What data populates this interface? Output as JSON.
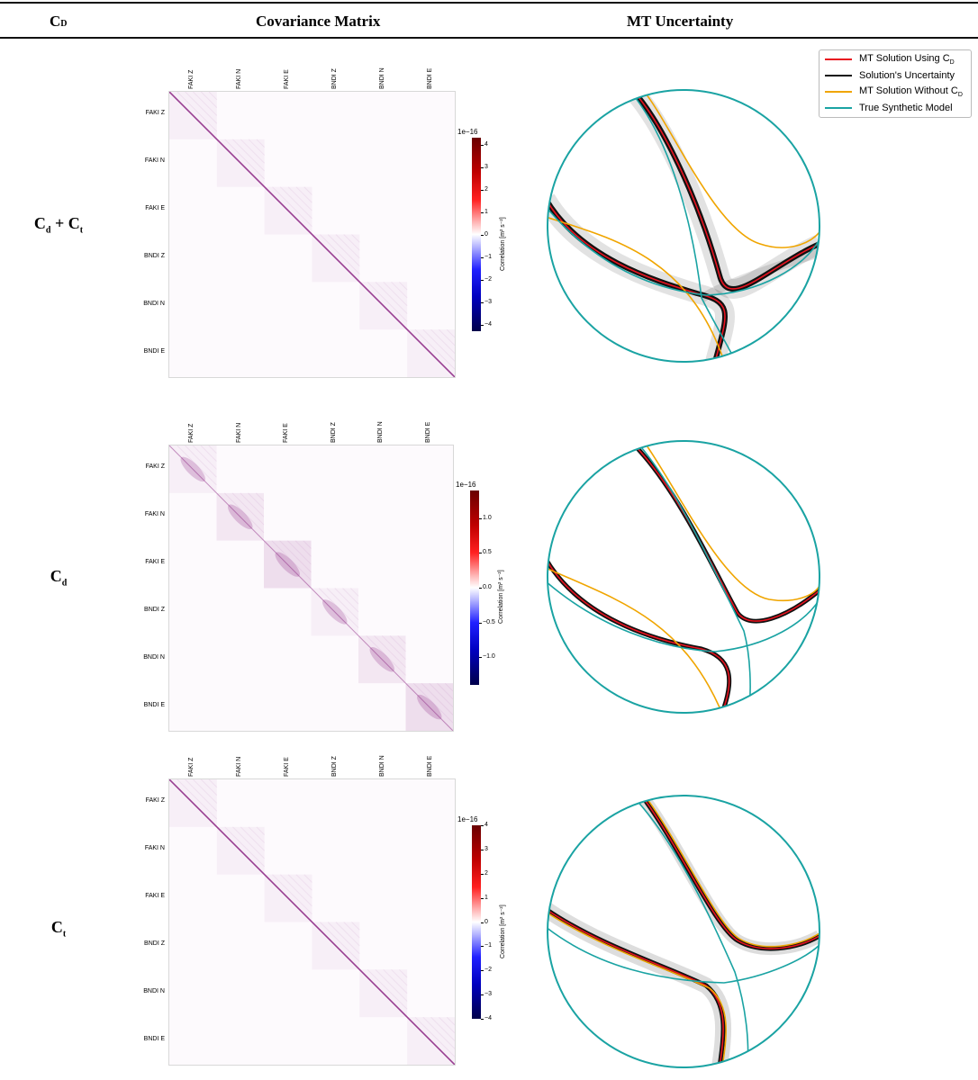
{
  "header": {
    "col1": "C",
    "col1_sub": "D",
    "col2": "Covariance Matrix",
    "col3": "MT Uncertainty"
  },
  "channels": [
    "FAKI Z",
    "FAKI N",
    "FAKI E",
    "BNDI Z",
    "BNDI N",
    "BNDI E"
  ],
  "rows": [
    {
      "label_parts": [
        {
          "text": "C",
          "sub": "d"
        },
        {
          "text": " + ",
          "sub": ""
        },
        {
          "text": "C",
          "sub": "t"
        }
      ],
      "colorbar": {
        "exponent": "1e−16",
        "label": "Correlation [m² s⁻²]",
        "ticks": [
          "4",
          "3",
          "2",
          "1",
          "0",
          "−1",
          "−2",
          "−3",
          "−4"
        ],
        "tick_values": [
          4,
          3,
          2,
          1,
          0,
          -1,
          -2,
          -3,
          -4
        ],
        "range": [
          -4.3,
          4.3
        ]
      }
    },
    {
      "label_parts": [
        {
          "text": "C",
          "sub": "d"
        }
      ],
      "colorbar": {
        "exponent": "1e−16",
        "label": "Correlation [m² s⁻²]",
        "ticks": [
          "1.0",
          "0.5",
          "0.0",
          "−0.5",
          "−1.0"
        ],
        "tick_values": [
          1.0,
          0.5,
          0.0,
          -0.5,
          -1.0
        ],
        "range": [
          -1.4,
          1.4
        ]
      }
    },
    {
      "label_parts": [
        {
          "text": "C",
          "sub": "t"
        }
      ],
      "colorbar": {
        "exponent": "1e−16",
        "label": "Correlation [m² s⁻²]",
        "ticks": [
          "4",
          "3",
          "2",
          "1",
          "0",
          "−1",
          "−2",
          "−3",
          "−4"
        ],
        "tick_values": [
          4,
          3,
          2,
          1,
          0,
          -1,
          -2,
          -3,
          -4
        ],
        "range": [
          -4,
          4
        ]
      }
    }
  ],
  "legend": {
    "items": [
      {
        "text": "MT Solution Using C",
        "sub": "D",
        "color": "#e8121f"
      },
      {
        "text": "Solution's Uncertainty",
        "sub": "",
        "color": "#111111"
      },
      {
        "text": "MT Solution Without C",
        "sub": "D",
        "color": "#f0a500"
      },
      {
        "text": "True Synthetic Model",
        "sub": "",
        "color": "#1aa3a3"
      }
    ]
  },
  "colors": {
    "mt_with": "#e8121f",
    "uncertainty": "#111111",
    "mt_without": "#f0a500",
    "true_model": "#1aa3a3",
    "outline": "#57b06a",
    "matrix_diag": "#8e2a86"
  }
}
